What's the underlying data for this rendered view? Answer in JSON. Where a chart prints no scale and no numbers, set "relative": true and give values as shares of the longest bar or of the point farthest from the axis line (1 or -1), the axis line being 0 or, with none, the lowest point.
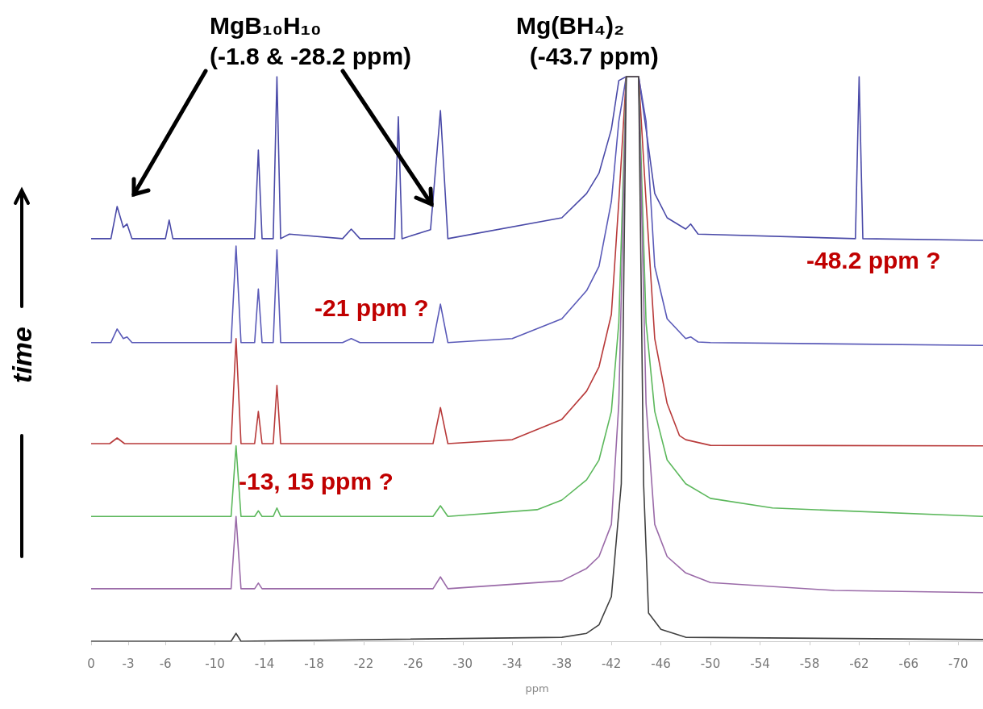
{
  "chart_data": {
    "type": "line",
    "relative": true,
    "tick_labels": "x",
    "marker": "none",
    "line_style": "solid",
    "xlabel": "ppm",
    "ylabel": "time",
    "xlim": [
      0,
      -72
    ],
    "xticks": [
      0,
      -3,
      -6,
      -10,
      -14,
      -18,
      -22,
      -26,
      -30,
      -34,
      -38,
      -42,
      -46,
      -50,
      -54,
      -58,
      -62,
      -66,
      -70
    ],
    "annotations": [
      "MgB₁₀H₁₀\n(-1.8 & -28.2 ppm)",
      "Mg(BH₄)₂\n  (-43.7 ppm)",
      "-21 ppm ?",
      "-48.2 ppm ?",
      "-13, 15 ppm ?"
    ],
    "series": [
      {
        "color": "#4a4aa8",
        "x": [
          0,
          -1.6,
          -2.1,
          -2.6,
          -2.9,
          -3.3,
          -6,
          -6.3,
          -6.6,
          -13.2,
          -13.5,
          -13.8,
          -14.7,
          -15,
          -15.3,
          -16,
          -20.3,
          -21,
          -21.7,
          -24.5,
          -24.8,
          -25.1,
          -27.4,
          -28.2,
          -28.8,
          -38,
          -40,
          -41,
          -42,
          -42.6,
          -43.2,
          -44.2,
          -44.8,
          -45.5,
          -46.5,
          -48,
          -48.4,
          -49,
          -61.7,
          -62,
          -62.3,
          -72
        ],
        "values": [
          0.713,
          0.713,
          0.77,
          0.733,
          0.739,
          0.713,
          0.713,
          0.746,
          0.713,
          0.713,
          0.87,
          0.713,
          0.713,
          1,
          0.713,
          0.721,
          0.713,
          0.73,
          0.713,
          0.713,
          0.929,
          0.713,
          0.729,
          0.94,
          0.713,
          0.75,
          0.793,
          0.829,
          0.907,
          0.993,
          1,
          1,
          0.907,
          0.793,
          0.75,
          0.73,
          0.739,
          0.721,
          0.713,
          1,
          0.713,
          0.71
        ]
      },
      {
        "color": "#5a5ab8",
        "x": [
          0,
          -1.6,
          -2.1,
          -2.6,
          -2.9,
          -3.3,
          -11.3,
          -11.7,
          -12.1,
          -13.2,
          -13.5,
          -13.8,
          -14.7,
          -15,
          -15.3,
          -20.3,
          -21,
          -21.7,
          -27.6,
          -28.2,
          -28.8,
          -34,
          -38,
          -40,
          -41,
          -42,
          -42.6,
          -43.2,
          -44.2,
          -44.8,
          -45.5,
          -46.5,
          -48,
          -48.4,
          -49,
          -50,
          -72
        ],
        "values": [
          0.529,
          0.529,
          0.553,
          0.536,
          0.539,
          0.529,
          0.529,
          0.7,
          0.529,
          0.529,
          0.624,
          0.529,
          0.529,
          0.693,
          0.529,
          0.529,
          0.536,
          0.529,
          0.529,
          0.597,
          0.529,
          0.536,
          0.571,
          0.621,
          0.664,
          0.779,
          0.921,
          1,
          1,
          0.921,
          0.664,
          0.571,
          0.536,
          0.539,
          0.53,
          0.529,
          0.524
        ]
      },
      {
        "color": "#b83a3a",
        "x": [
          0,
          -1.5,
          -2.1,
          -2.7,
          -11.3,
          -11.7,
          -12.1,
          -13.2,
          -13.5,
          -13.8,
          -14.7,
          -15,
          -15.3,
          -27.6,
          -28.2,
          -28.8,
          -34,
          -38,
          -40,
          -41,
          -42,
          -42.6,
          -43.2,
          -44.2,
          -44.8,
          -45.5,
          -46.5,
          -47.5,
          -48,
          -50,
          -72
        ],
        "values": [
          0.35,
          0.35,
          0.36,
          0.35,
          0.35,
          0.536,
          0.35,
          0.35,
          0.407,
          0.35,
          0.35,
          0.453,
          0.35,
          0.35,
          0.414,
          0.35,
          0.357,
          0.393,
          0.443,
          0.486,
          0.579,
          0.779,
          1,
          1,
          0.779,
          0.536,
          0.421,
          0.364,
          0.357,
          0.347,
          0.346
        ]
      },
      {
        "color": "#5cb85c",
        "x": [
          0,
          -11.3,
          -11.7,
          -12.1,
          -13.2,
          -13.5,
          -13.8,
          -14.7,
          -15,
          -15.3,
          -27.6,
          -28.2,
          -28.8,
          -36,
          -38,
          -40,
          -41,
          -42,
          -42.6,
          -43.2,
          -44.2,
          -44.8,
          -45.5,
          -46.5,
          -48,
          -50,
          -55,
          -72
        ],
        "values": [
          0.221,
          0.221,
          0.346,
          0.221,
          0.221,
          0.231,
          0.221,
          0.221,
          0.236,
          0.221,
          0.221,
          0.24,
          0.221,
          0.233,
          0.25,
          0.286,
          0.321,
          0.407,
          0.564,
          1,
          1,
          0.564,
          0.407,
          0.321,
          0.279,
          0.253,
          0.236,
          0.221
        ]
      },
      {
        "color": "#9a6aa8",
        "x": [
          0,
          -11.3,
          -11.7,
          -12.1,
          -13.2,
          -13.5,
          -13.8,
          -27.6,
          -28.2,
          -28.8,
          -38,
          -40,
          -41,
          -42,
          -42.6,
          -43.2,
          -44.2,
          -44.8,
          -45.5,
          -46.5,
          -48,
          -50,
          -60,
          -72
        ],
        "values": [
          0.093,
          0.093,
          0.221,
          0.093,
          0.093,
          0.103,
          0.093,
          0.093,
          0.114,
          0.093,
          0.107,
          0.129,
          0.15,
          0.207,
          0.421,
          1,
          1,
          0.421,
          0.207,
          0.15,
          0.121,
          0.104,
          0.09,
          0.086
        ]
      },
      {
        "color": "#404040",
        "x": [
          0,
          -11.3,
          -11.7,
          -12.1,
          -38,
          -40,
          -41,
          -42,
          -42.8,
          -43.2,
          -44.2,
          -44.6,
          -45,
          -46,
          -48,
          -72
        ],
        "values": [
          0,
          0,
          0.014,
          0,
          0.007,
          0.014,
          0.029,
          0.079,
          0.279,
          1,
          1,
          0.279,
          0.05,
          0.021,
          0.007,
          0.003
        ]
      }
    ]
  }
}
